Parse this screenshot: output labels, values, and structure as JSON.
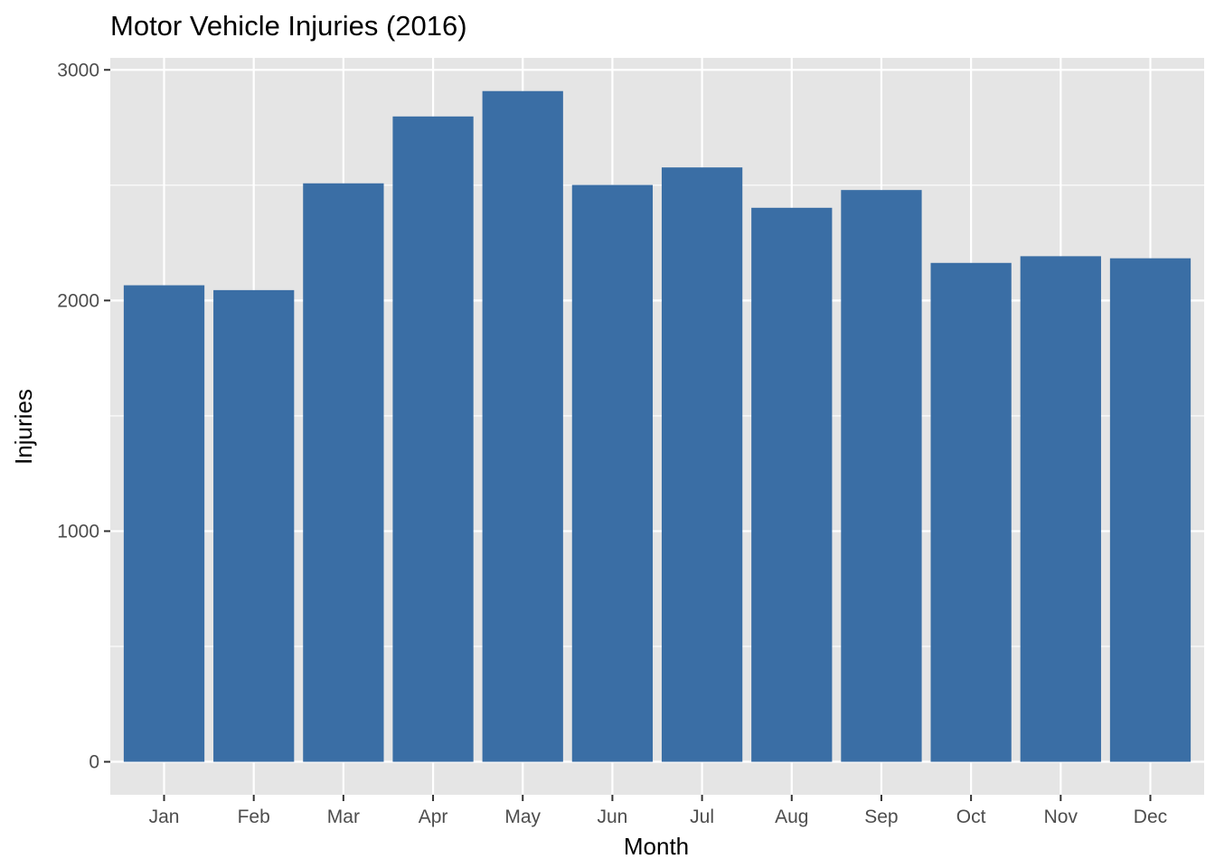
{
  "chart_data": {
    "type": "bar",
    "title": "Motor Vehicle Injuries (2016)",
    "xlabel": "Month",
    "ylabel": "Injuries",
    "categories": [
      "Jan",
      "Feb",
      "Mar",
      "Apr",
      "May",
      "Jun",
      "Jul",
      "Aug",
      "Sep",
      "Oct",
      "Nov",
      "Dec"
    ],
    "values": [
      2066,
      2045,
      2508,
      2798,
      2908,
      2501,
      2577,
      2402,
      2479,
      2163,
      2192,
      2183
    ],
    "ylim": [
      -143,
      3052
    ],
    "yticks": [
      0,
      1000,
      2000,
      3000
    ],
    "yticks_minor": [
      500,
      1500,
      2500
    ],
    "grid": true,
    "legend": "none",
    "colors": {
      "bar": "#3A6EA5",
      "panel": "#E5E5E5",
      "grid": "#FFFFFF",
      "tick_text": "#4D4D4D",
      "tick_mark": "#333333"
    }
  }
}
